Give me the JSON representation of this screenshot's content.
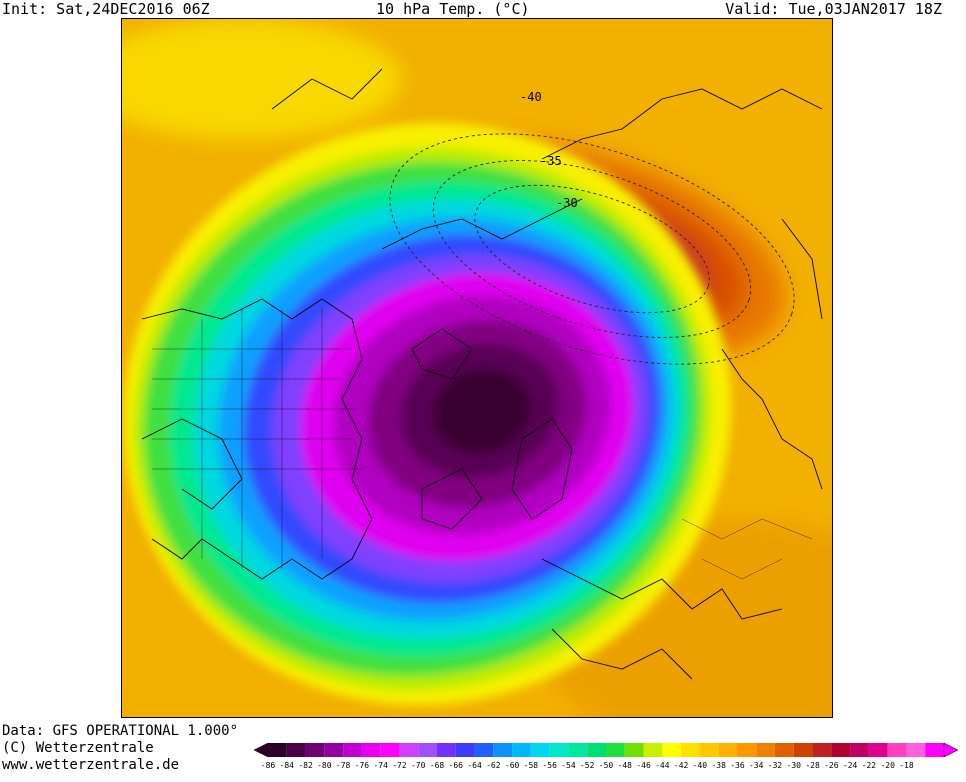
{
  "header": {
    "init": "Init: Sat,24DEC2016 06Z",
    "title": "10 hPa Temp. (°C)",
    "valid": "Valid: Tue,03JAN2017 18Z"
  },
  "footer": {
    "data_line": "Data: GFS OPERATIONAL 1.000°",
    "copyright_line": "(C) Wetterzentrale",
    "url_line": "www.wetterzentrale.de"
  },
  "contour_labels": [
    "-40",
    "-35",
    "-30"
  ],
  "colorbar": {
    "ticks": [
      "-86",
      "-84",
      "-82",
      "-80",
      "-78",
      "-76",
      "-74",
      "-72",
      "-70",
      "-68",
      "-66",
      "-64",
      "-62",
      "-60",
      "-58",
      "-56",
      "-54",
      "-52",
      "-50",
      "-48",
      "-46",
      "-44",
      "-42",
      "-40",
      "-38",
      "-36",
      "-34",
      "-32",
      "-30",
      "-28",
      "-26",
      "-24",
      "-22",
      "-20",
      "-18"
    ],
    "colors": [
      "#2a0026",
      "#4b0046",
      "#6d0072",
      "#9400a0",
      "#c000d0",
      "#e800f0",
      "#ff00ff",
      "#d040ff",
      "#a050ff",
      "#7030ff",
      "#3c3cff",
      "#2060ff",
      "#1090ff",
      "#00b8ff",
      "#00d8f0",
      "#00e8c8",
      "#00e8a0",
      "#00e070",
      "#20e040",
      "#70e000",
      "#c8f000",
      "#ffff00",
      "#ffe000",
      "#ffc800",
      "#ffb000",
      "#ff9800",
      "#f08000",
      "#e06000",
      "#d04000",
      "#c02020",
      "#b00030",
      "#c00060",
      "#e00090",
      "#ff40c0",
      "#ff60e0",
      "#ff00ff"
    ]
  },
  "colors": {
    "warm_background": "#f4b800",
    "vortex_core": "#3a0030"
  }
}
